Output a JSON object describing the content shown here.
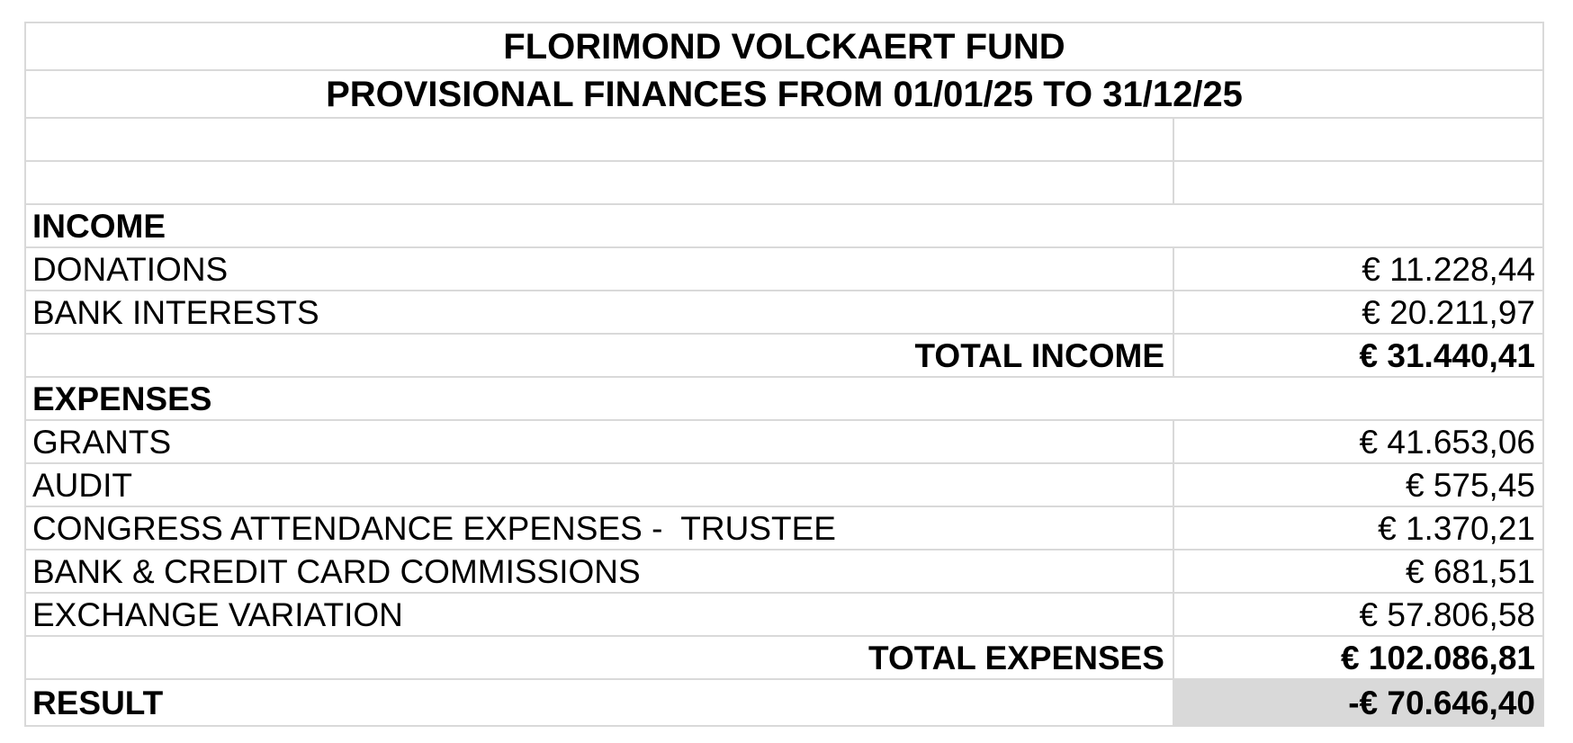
{
  "table": {
    "colors": {
      "grid": "#d9d9d9",
      "result_value_bg": "#d9d9d9",
      "text": "#000000"
    },
    "rows": [
      {
        "type": "title",
        "label": "FLORIMOND VOLCKAERT FUND"
      },
      {
        "type": "title",
        "label": "PROVISIONAL FINANCES FROM 01/01/25 TO 31/12/25"
      },
      {
        "type": "empty",
        "label": "",
        "value": ""
      },
      {
        "type": "empty",
        "label": "",
        "value": ""
      },
      {
        "type": "section",
        "label": "INCOME"
      },
      {
        "type": "item",
        "label": "DONATIONS",
        "value": "€ 11.228,44"
      },
      {
        "type": "item",
        "label": "BANK INTERESTS",
        "value": "€ 20.211,97"
      },
      {
        "type": "total",
        "label": "TOTAL INCOME",
        "value": "€ 31.440,41"
      },
      {
        "type": "section",
        "label": "EXPENSES"
      },
      {
        "type": "item",
        "label": "GRANTS",
        "value": "€ 41.653,06"
      },
      {
        "type": "item",
        "label": "AUDIT",
        "value": "€ 575,45"
      },
      {
        "type": "item",
        "label": "CONGRESS ATTENDANCE EXPENSES -  TRUSTEE",
        "value": "€ 1.370,21"
      },
      {
        "type": "item",
        "label": "BANK & CREDIT CARD COMMISSIONS",
        "value": "€ 681,51"
      },
      {
        "type": "item",
        "label": "EXCHANGE VARIATION",
        "value": "€ 57.806,58"
      },
      {
        "type": "total",
        "label": "TOTAL EXPENSES",
        "value": "€ 102.086,81"
      },
      {
        "type": "result",
        "label": "RESULT",
        "value": "-€ 70.646,40"
      }
    ]
  }
}
